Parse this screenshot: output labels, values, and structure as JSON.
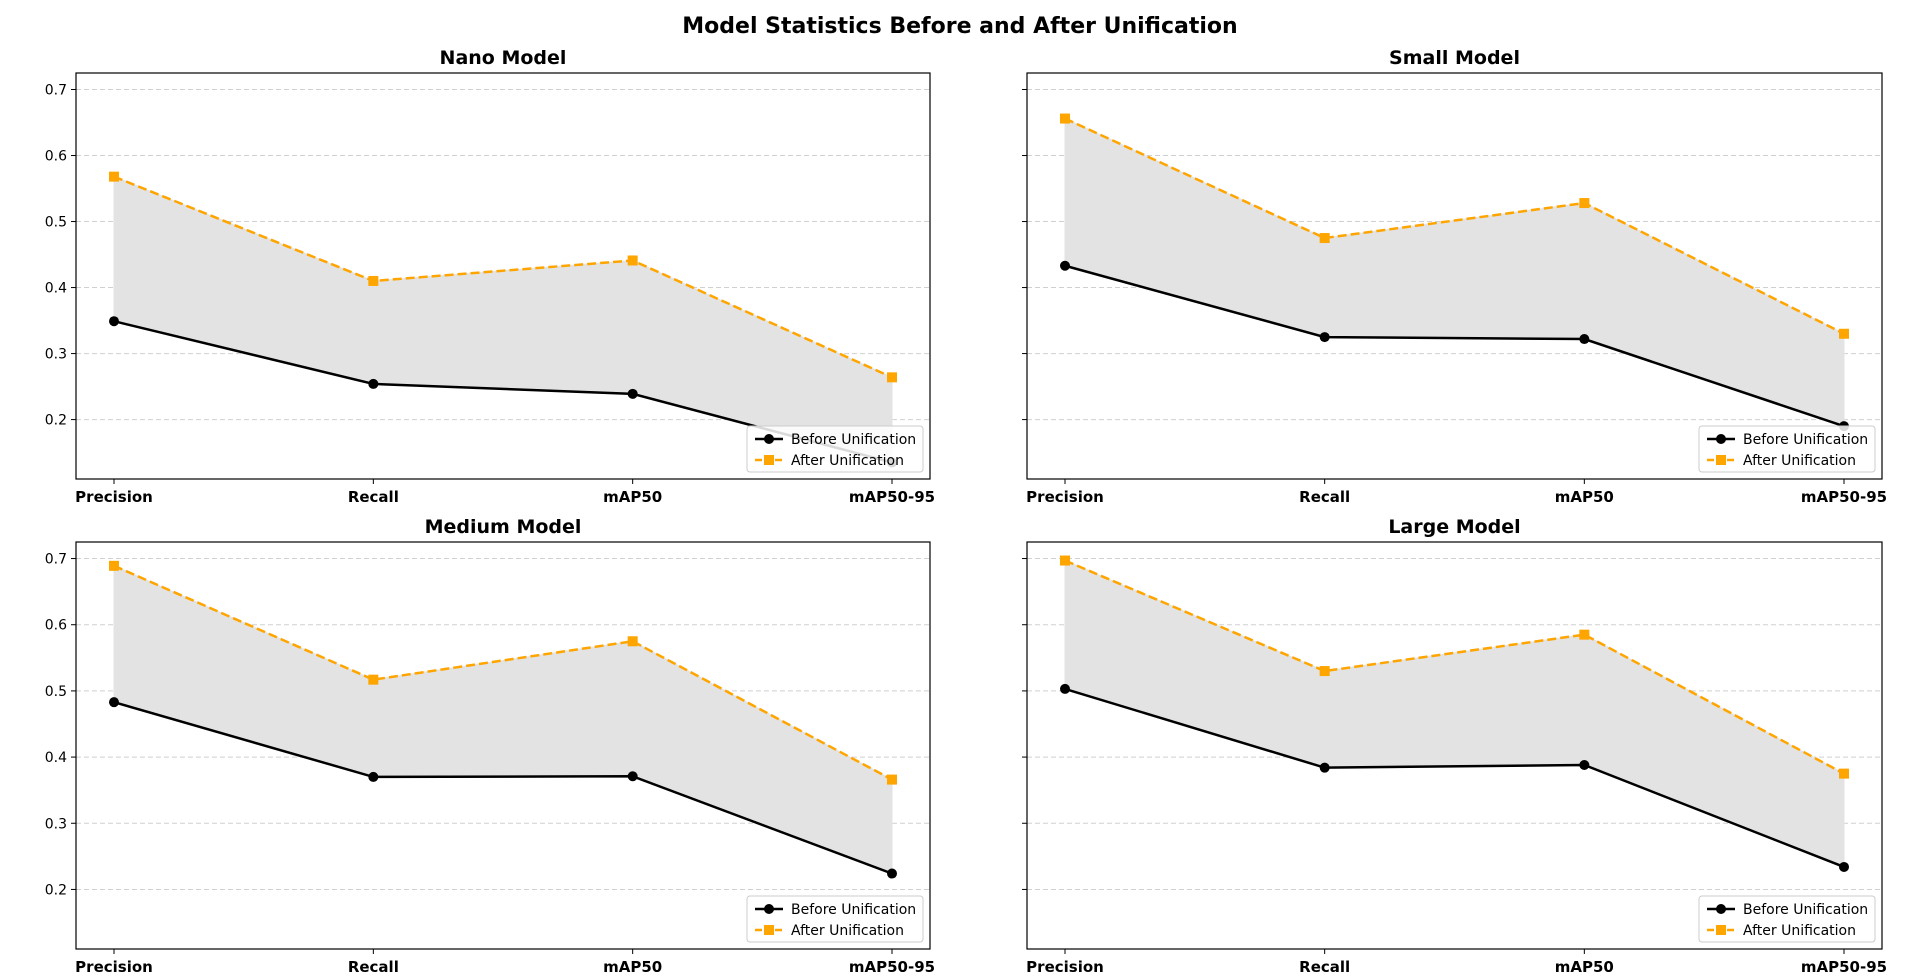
{
  "figure": {
    "title": "Model Statistics Before and After Unification"
  },
  "colors": {
    "before": "#000000",
    "after": "#FFA500",
    "fill": "#E3E3E3",
    "grid": "#D0D0D0"
  },
  "chart_data": [
    {
      "type": "line",
      "title": "Nano Model",
      "categories": [
        "Precision",
        "Recall",
        "mAP50",
        "mAP50-95"
      ],
      "ylim": [
        0.11,
        0.725
      ],
      "yticks": [
        "0.2",
        "0.3",
        "0.4",
        "0.5",
        "0.6",
        "0.7"
      ],
      "grid": "y",
      "legend": "lower right",
      "series": [
        {
          "name": "Before Unification",
          "values": [
            0.349,
            0.254,
            0.239,
            0.135
          ]
        },
        {
          "name": "After Unification",
          "values": [
            0.568,
            0.41,
            0.441,
            0.264
          ]
        }
      ]
    },
    {
      "type": "line",
      "title": "Small Model",
      "categories": [
        "Precision",
        "Recall",
        "mAP50",
        "mAP50-95"
      ],
      "ylim": [
        0.11,
        0.725
      ],
      "yticks": [
        "0.2",
        "0.3",
        "0.4",
        "0.5",
        "0.6",
        "0.7"
      ],
      "grid": "y",
      "legend": "lower right",
      "series": [
        {
          "name": "Before Unification",
          "values": [
            0.433,
            0.325,
            0.322,
            0.19
          ]
        },
        {
          "name": "After Unification",
          "values": [
            0.656,
            0.475,
            0.528,
            0.33
          ]
        }
      ]
    },
    {
      "type": "line",
      "title": "Medium Model",
      "categories": [
        "Precision",
        "Recall",
        "mAP50",
        "mAP50-95"
      ],
      "ylim": [
        0.11,
        0.725
      ],
      "yticks": [
        "0.2",
        "0.3",
        "0.4",
        "0.5",
        "0.6",
        "0.7"
      ],
      "grid": "y",
      "legend": "lower right",
      "series": [
        {
          "name": "Before Unification",
          "values": [
            0.483,
            0.37,
            0.371,
            0.224
          ]
        },
        {
          "name": "After Unification",
          "values": [
            0.689,
            0.517,
            0.575,
            0.366
          ]
        }
      ]
    },
    {
      "type": "line",
      "title": "Large Model",
      "categories": [
        "Precision",
        "Recall",
        "mAP50",
        "mAP50-95"
      ],
      "ylim": [
        0.11,
        0.725
      ],
      "yticks": [
        "0.2",
        "0.3",
        "0.4",
        "0.5",
        "0.6",
        "0.7"
      ],
      "grid": "y",
      "legend": "lower right",
      "series": [
        {
          "name": "Before Unification",
          "values": [
            0.503,
            0.384,
            0.388,
            0.234
          ]
        },
        {
          "name": "After Unification",
          "values": [
            0.697,
            0.53,
            0.585,
            0.375
          ]
        }
      ]
    }
  ]
}
